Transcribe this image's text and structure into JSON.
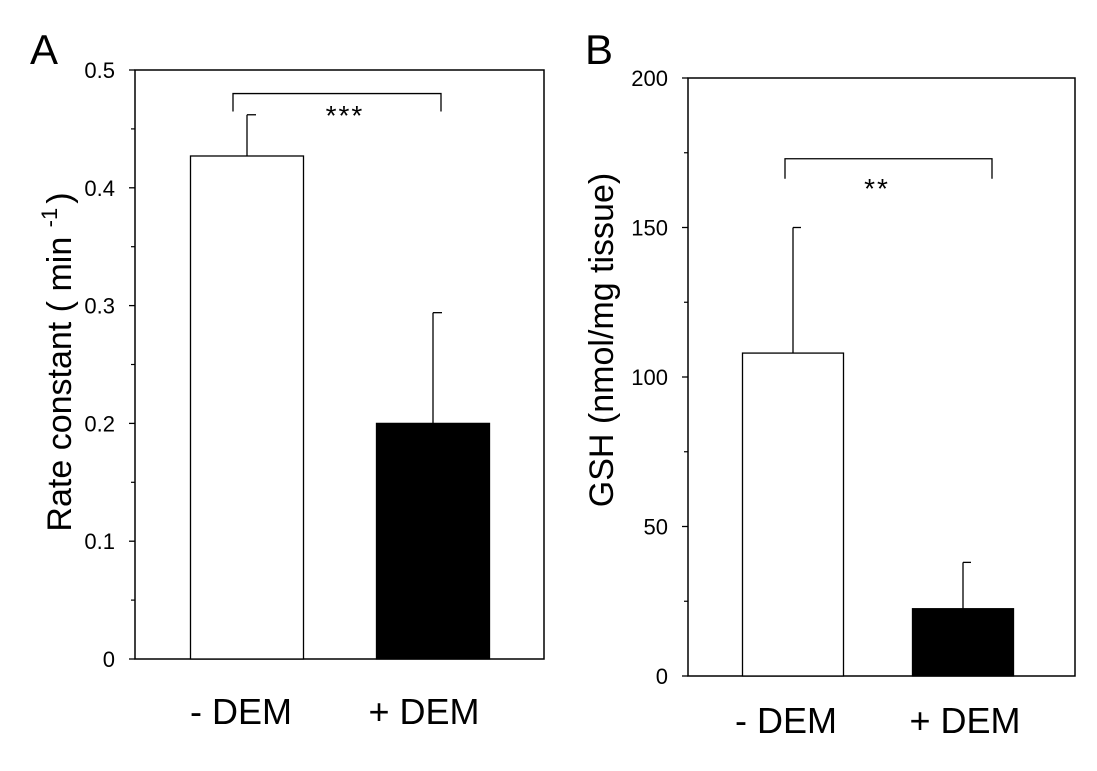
{
  "chart_data": [
    {
      "type": "bar",
      "panel": "A",
      "categories": [
        "- DEM",
        "+ DEM"
      ],
      "values": [
        0.427,
        0.2
      ],
      "errors": [
        0.035,
        0.094
      ],
      "bar_colors": [
        "#ffffff",
        "#000000"
      ],
      "ylabel_main": "Rate constant ( min ",
      "ylabel_sup": "-1",
      "ylabel_end": ")",
      "ylim": [
        0,
        0.5
      ],
      "yticks": [
        0,
        0.1,
        0.2,
        0.3,
        0.4,
        0.5
      ],
      "ytick_labels": [
        "0",
        "0.1",
        "0.2",
        "0.3",
        "0.4",
        "0.5"
      ],
      "significance": "***",
      "bracket_y": 0.48
    },
    {
      "type": "bar",
      "panel": "B",
      "categories": [
        "- DEM",
        "+ DEM"
      ],
      "values": [
        108,
        22.5
      ],
      "errors": [
        42,
        15.5
      ],
      "bar_colors": [
        "#ffffff",
        "#000000"
      ],
      "ylabel_main": "GSH (nmol/mg tissue)",
      "ylim": [
        0,
        200
      ],
      "yticks": [
        0,
        50,
        100,
        150,
        200
      ],
      "ytick_labels": [
        "0",
        "50",
        "100",
        "150",
        "200"
      ],
      "significance": "**",
      "bracket_y": 173
    }
  ]
}
